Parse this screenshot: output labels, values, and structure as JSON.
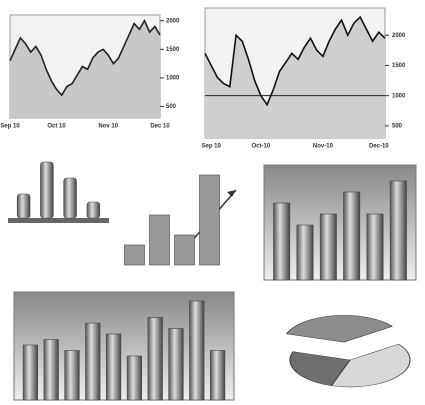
{
  "chart_data": [
    {
      "type": "line",
      "color": "#222",
      "fill": "#c8c8c8",
      "categories": [
        "Sep 10",
        null,
        null,
        null,
        null,
        null,
        null,
        null,
        null,
        "Oct 10",
        null,
        null,
        null,
        null,
        null,
        null,
        null,
        null,
        null,
        "Nov 10",
        null,
        null,
        null,
        null,
        null,
        null,
        null,
        null,
        null,
        "Dec 10"
      ],
      "values": [
        1300,
        1500,
        1700,
        1600,
        1450,
        1550,
        1400,
        1150,
        950,
        800,
        700,
        850,
        900,
        1050,
        1200,
        1150,
        1350,
        1450,
        1500,
        1400,
        1250,
        1350,
        1550,
        1750,
        1950,
        1850,
        2000,
        1800,
        1900,
        1750
      ],
      "ylim": [
        300,
        2100
      ],
      "yticks": [
        500,
        1000,
        1500,
        2000
      ]
    },
    {
      "type": "line",
      "color": "#111",
      "fill": "#cfcfcf",
      "categories": [
        null,
        "Sep 10",
        null,
        null,
        null,
        null,
        null,
        null,
        null,
        "Oct-10",
        null,
        null,
        null,
        null,
        null,
        null,
        null,
        null,
        null,
        "Nov-10",
        null,
        null,
        null,
        null,
        null,
        null,
        null,
        null,
        "Dec-10",
        null
      ],
      "values": [
        1700,
        1500,
        1300,
        1200,
        1150,
        2000,
        1900,
        1600,
        1250,
        1000,
        850,
        1100,
        1400,
        1550,
        1700,
        1600,
        1800,
        1950,
        1750,
        1650,
        1900,
        2100,
        2250,
        2000,
        2200,
        2300,
        2100,
        1900,
        2050,
        1950
      ],
      "ylim": [
        300,
        2450
      ],
      "yticks": [
        500,
        1000,
        1500,
        2000
      ],
      "hline": 1000
    },
    {
      "type": "bar",
      "color": "#8a8a8a",
      "categories": [
        null,
        null,
        null,
        null
      ],
      "values": [
        3,
        7,
        5,
        2
      ]
    },
    {
      "type": "bar",
      "color": "#9a9a9a",
      "categories": [
        null,
        null,
        null,
        null
      ],
      "values": [
        2,
        5,
        3,
        9
      ]
    },
    {
      "type": "bar",
      "color": "#b0b0b0",
      "categories": [
        null,
        null,
        null,
        null,
        null,
        null
      ],
      "values": [
        7,
        5,
        6,
        8,
        6,
        9
      ]
    },
    {
      "type": "bar",
      "color": "#a8a8a8",
      "categories": [
        null,
        null,
        null,
        null,
        null,
        null,
        null,
        null,
        null,
        null
      ],
      "values": [
        5,
        5.5,
        4.5,
        7,
        6,
        4,
        7.5,
        6.5,
        9,
        4.5
      ]
    },
    {
      "type": "pie",
      "color": "#9a9a9a",
      "values": [
        35,
        40,
        25
      ]
    }
  ]
}
